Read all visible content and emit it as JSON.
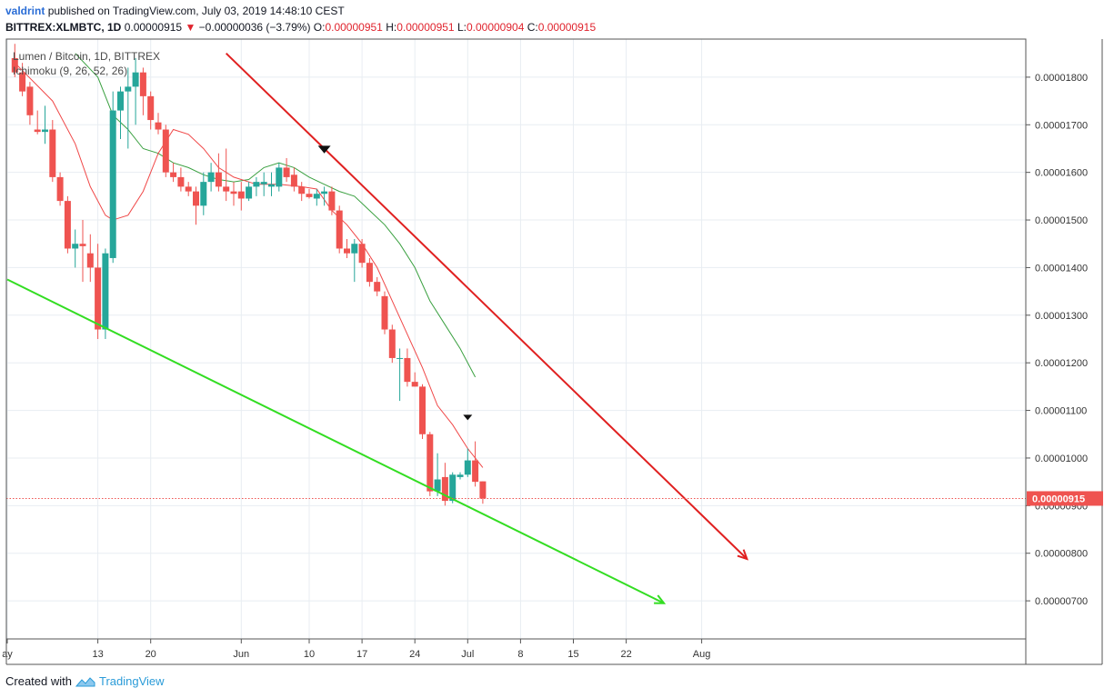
{
  "header": {
    "author": "valdrint",
    "published": "published on TradingView.com, July 03, 2019 14:48:10 CEST"
  },
  "symbol_line": {
    "symbol": "BITTREX:XLMBTC, 1D",
    "last": "0.00000915",
    "arrow": "▼",
    "change": "−0.00000036 (−3.79%)",
    "o_label": "O:",
    "o_value": "0.00000951",
    "h_label": "H:",
    "h_value": "0.00000951",
    "l_label": "L:",
    "l_value": "0.00000904",
    "c_label": "C:",
    "c_value": "0.00000915"
  },
  "legend": {
    "series": "Lumen / Bitcoin, 1D, BITTREX",
    "indicator": "Ichimoku (9, 26, 52, 26)"
  },
  "footer": {
    "created_with": "Created with",
    "brand": "TradingView"
  },
  "colors": {
    "up": "#26a69a",
    "down": "#ef5350",
    "resistance": "#e02020",
    "support": "#33dd22",
    "conversion": "#f04848",
    "base": "#3aa040",
    "grid": "#e8edf2",
    "price_tag": "#ef5350"
  },
  "chart_data": {
    "type": "candlestick",
    "x_ticks": [
      "ay",
      "13",
      "20",
      "Jun",
      "10",
      "17",
      "24",
      "Jul",
      "8",
      "15",
      "22",
      "Aug"
    ],
    "y_ticks": [
      "0.00001800",
      "0.00001700",
      "0.00001600",
      "0.00001500",
      "0.00001400",
      "0.00001300",
      "0.00001200",
      "0.00001100",
      "0.00001000",
      "0.00000900",
      "0.00000800",
      "0.00000700"
    ],
    "ylim": [
      6.2e-06,
      1.88e-05
    ],
    "last_price_label": "0.00000915",
    "last_price": 9.15e-06,
    "start_date": "2019-05-01",
    "x_tick_days": [
      0,
      12,
      19,
      31,
      40,
      47,
      54,
      61,
      68,
      75,
      82,
      92
    ],
    "candles": [
      {
        "date": "2019-05-02",
        "o": 1.84e-05,
        "h": 1.87e-05,
        "l": 1.8e-05,
        "c": 1.81e-05
      },
      {
        "date": "2019-05-03",
        "o": 1.81e-05,
        "h": 1.83e-05,
        "l": 1.76e-05,
        "c": 1.77e-05
      },
      {
        "date": "2019-05-04",
        "o": 1.78e-05,
        "h": 1.79e-05,
        "l": 1.7e-05,
        "c": 1.72e-05
      },
      {
        "date": "2019-05-05",
        "o": 1.69e-05,
        "h": 1.73e-05,
        "l": 1.68e-05,
        "c": 1.685e-05
      },
      {
        "date": "2019-05-06",
        "o": 1.685e-05,
        "h": 1.74e-05,
        "l": 1.66e-05,
        "c": 1.69e-05
      },
      {
        "date": "2019-05-07",
        "o": 1.69e-05,
        "h": 1.71e-05,
        "l": 1.58e-05,
        "c": 1.59e-05
      },
      {
        "date": "2019-05-08",
        "o": 1.59e-05,
        "h": 1.6e-05,
        "l": 1.53e-05,
        "c": 1.54e-05
      },
      {
        "date": "2019-05-09",
        "o": 1.54e-05,
        "h": 1.55e-05,
        "l": 1.43e-05,
        "c": 1.44e-05
      },
      {
        "date": "2019-05-10",
        "o": 1.44e-05,
        "h": 1.48e-05,
        "l": 1.4e-05,
        "c": 1.45e-05
      },
      {
        "date": "2019-05-11",
        "o": 1.45e-05,
        "h": 1.5e-05,
        "l": 1.37e-05,
        "c": 1.445e-05
      },
      {
        "date": "2019-05-12",
        "o": 1.43e-05,
        "h": 1.47e-05,
        "l": 1.37e-05,
        "c": 1.4e-05
      },
      {
        "date": "2019-05-13",
        "o": 1.4e-05,
        "h": 1.45e-05,
        "l": 1.25e-05,
        "c": 1.27e-05
      },
      {
        "date": "2019-05-14",
        "o": 1.27e-05,
        "h": 1.44e-05,
        "l": 1.25e-05,
        "c": 1.43e-05
      },
      {
        "date": "2019-05-15",
        "o": 1.42e-05,
        "h": 1.77e-05,
        "l": 1.41e-05,
        "c": 1.73e-05
      },
      {
        "date": "2019-05-16",
        "o": 1.73e-05,
        "h": 1.78e-05,
        "l": 1.67e-05,
        "c": 1.77e-05
      },
      {
        "date": "2019-05-17",
        "o": 1.77e-05,
        "h": 1.82e-05,
        "l": 1.65e-05,
        "c": 1.78e-05
      },
      {
        "date": "2019-05-18",
        "o": 1.78e-05,
        "h": 1.84e-05,
        "l": 1.7e-05,
        "c": 1.81e-05
      },
      {
        "date": "2019-05-19",
        "o": 1.81e-05,
        "h": 1.82e-05,
        "l": 1.72e-05,
        "c": 1.76e-05
      },
      {
        "date": "2019-05-20",
        "o": 1.76e-05,
        "h": 1.77e-05,
        "l": 1.69e-05,
        "c": 1.71e-05
      },
      {
        "date": "2019-05-21",
        "o": 1.705e-05,
        "h": 1.725e-05,
        "l": 1.68e-05,
        "c": 1.69e-05
      },
      {
        "date": "2019-05-22",
        "o": 1.69e-05,
        "h": 1.7e-05,
        "l": 1.59e-05,
        "c": 1.6e-05
      },
      {
        "date": "2019-05-23",
        "o": 1.6e-05,
        "h": 1.62e-05,
        "l": 1.58e-05,
        "c": 1.59e-05
      },
      {
        "date": "2019-05-24",
        "o": 1.59e-05,
        "h": 1.61e-05,
        "l": 1.56e-05,
        "c": 1.57e-05
      },
      {
        "date": "2019-05-25",
        "o": 1.57e-05,
        "h": 1.58e-05,
        "l": 1.55e-05,
        "c": 1.56e-05
      },
      {
        "date": "2019-05-26",
        "o": 1.56e-05,
        "h": 1.57e-05,
        "l": 1.49e-05,
        "c": 1.53e-05
      },
      {
        "date": "2019-05-27",
        "o": 1.53e-05,
        "h": 1.6e-05,
        "l": 1.51e-05,
        "c": 1.58e-05
      },
      {
        "date": "2019-05-28",
        "o": 1.58e-05,
        "h": 1.62e-05,
        "l": 1.56e-05,
        "c": 1.6e-05
      },
      {
        "date": "2019-05-29",
        "o": 1.6e-05,
        "h": 1.64e-05,
        "l": 1.56e-05,
        "c": 1.57e-05
      },
      {
        "date": "2019-05-30",
        "o": 1.57e-05,
        "h": 1.65e-05,
        "l": 1.54e-05,
        "c": 1.56e-05
      },
      {
        "date": "2019-05-31",
        "o": 1.56e-05,
        "h": 1.58e-05,
        "l": 1.53e-05,
        "c": 1.555e-05
      },
      {
        "date": "2019-06-01",
        "o": 1.56e-05,
        "h": 1.58e-05,
        "l": 1.52e-05,
        "c": 1.545e-05
      },
      {
        "date": "2019-06-02",
        "o": 1.545e-05,
        "h": 1.58e-05,
        "l": 1.54e-05,
        "c": 1.57e-05
      },
      {
        "date": "2019-06-03",
        "o": 1.57e-05,
        "h": 1.59e-05,
        "l": 1.55e-05,
        "c": 1.58e-05
      },
      {
        "date": "2019-06-04",
        "o": 1.575e-05,
        "h": 1.6e-05,
        "l": 1.55e-05,
        "c": 1.58e-05
      },
      {
        "date": "2019-06-05",
        "o": 1.57e-05,
        "h": 1.6e-05,
        "l": 1.55e-05,
        "c": 1.575e-05
      },
      {
        "date": "2019-06-06",
        "o": 1.57e-05,
        "h": 1.62e-05,
        "l": 1.56e-05,
        "c": 1.61e-05
      },
      {
        "date": "2019-06-07",
        "o": 1.61e-05,
        "h": 1.63e-05,
        "l": 1.58e-05,
        "c": 1.59e-05
      },
      {
        "date": "2019-06-08",
        "o": 1.595e-05,
        "h": 1.61e-05,
        "l": 1.56e-05,
        "c": 1.57e-05
      },
      {
        "date": "2019-06-09",
        "o": 1.57e-05,
        "h": 1.58e-05,
        "l": 1.54e-05,
        "c": 1.555e-05
      },
      {
        "date": "2019-06-10",
        "o": 1.555e-05,
        "h": 1.565e-05,
        "l": 1.545e-05,
        "c": 1.548e-05
      },
      {
        "date": "2019-06-11",
        "o": 1.545e-05,
        "h": 1.565e-05,
        "l": 1.53e-05,
        "c": 1.555e-05
      },
      {
        "date": "2019-06-12",
        "o": 1.555e-05,
        "h": 1.57e-05,
        "l": 1.53e-05,
        "c": 1.56e-05
      },
      {
        "date": "2019-06-13",
        "o": 1.56e-05,
        "h": 1.57e-05,
        "l": 1.51e-05,
        "c": 1.52e-05
      },
      {
        "date": "2019-06-14",
        "o": 1.52e-05,
        "h": 1.53e-05,
        "l": 1.43e-05,
        "c": 1.44e-05
      },
      {
        "date": "2019-06-15",
        "o": 1.44e-05,
        "h": 1.46e-05,
        "l": 1.42e-05,
        "c": 1.43e-05
      },
      {
        "date": "2019-06-16",
        "o": 1.43e-05,
        "h": 1.46e-05,
        "l": 1.37e-05,
        "c": 1.45e-05
      },
      {
        "date": "2019-06-17",
        "o": 1.45e-05,
        "h": 1.46e-05,
        "l": 1.4e-05,
        "c": 1.41e-05
      },
      {
        "date": "2019-06-18",
        "o": 1.41e-05,
        "h": 1.42e-05,
        "l": 1.36e-05,
        "c": 1.37e-05
      },
      {
        "date": "2019-06-19",
        "o": 1.37e-05,
        "h": 1.38e-05,
        "l": 1.34e-05,
        "c": 1.35e-05
      },
      {
        "date": "2019-06-20",
        "o": 1.34e-05,
        "h": 1.35e-05,
        "l": 1.26e-05,
        "c": 1.27e-05
      },
      {
        "date": "2019-06-21",
        "o": 1.27e-05,
        "h": 1.28e-05,
        "l": 1.2e-05,
        "c": 1.21e-05
      },
      {
        "date": "2019-06-22",
        "o": 1.21e-05,
        "h": 1.23e-05,
        "l": 1.12e-05,
        "c": 1.21e-05
      },
      {
        "date": "2019-06-23",
        "o": 1.21e-05,
        "h": 1.23e-05,
        "l": 1.15e-05,
        "c": 1.16e-05
      },
      {
        "date": "2019-06-24",
        "o": 1.16e-05,
        "h": 1.18e-05,
        "l": 1.15e-05,
        "c": 1.15e-05
      },
      {
        "date": "2019-06-25",
        "o": 1.15e-05,
        "h": 1.155e-05,
        "l": 1.04e-05,
        "c": 1.05e-05
      },
      {
        "date": "2019-06-26",
        "o": 1.05e-05,
        "h": 1.055e-05,
        "l": 9.2e-06,
        "c": 9.3e-06
      },
      {
        "date": "2019-06-27",
        "o": 9.3e-06,
        "h": 1.01e-05,
        "l": 9.2e-06,
        "c": 9.55e-06
      },
      {
        "date": "2019-06-28",
        "o": 9.6e-06,
        "h": 9.9e-06,
        "l": 9e-06,
        "c": 9.1e-06
      },
      {
        "date": "2019-06-29",
        "o": 9.1e-06,
        "h": 9.7e-06,
        "l": 9.05e-06,
        "c": 9.65e-06
      },
      {
        "date": "2019-06-30",
        "o": 9.6e-06,
        "h": 9.7e-06,
        "l": 9.55e-06,
        "c": 9.65e-06
      },
      {
        "date": "2019-07-01",
        "o": 9.65e-06,
        "h": 1.02e-05,
        "l": 9.6e-06,
        "c": 9.95e-06
      },
      {
        "date": "2019-07-02",
        "o": 9.95e-06,
        "h": 1.035e-05,
        "l": 9.4e-06,
        "c": 9.5e-06
      },
      {
        "date": "2019-07-03",
        "o": 9.51e-06,
        "h": 9.51e-06,
        "l": 9.04e-06,
        "c": 9.15e-06
      }
    ],
    "conversion_line": [
      [
        1,
        1.83e-05
      ],
      [
        6,
        1.75e-05
      ],
      [
        9,
        1.66e-05
      ],
      [
        11,
        1.57e-05
      ],
      [
        13,
        1.51e-05
      ],
      [
        14,
        1.5e-05
      ],
      [
        16,
        1.51e-05
      ],
      [
        18,
        1.56e-05
      ],
      [
        20,
        1.64e-05
      ],
      [
        22,
        1.69e-05
      ],
      [
        24,
        1.68e-05
      ],
      [
        26,
        1.65e-05
      ],
      [
        28,
        1.61e-05
      ],
      [
        30,
        1.59e-05
      ],
      [
        33,
        1.575e-05
      ],
      [
        36,
        1.575e-05
      ],
      [
        39,
        1.57e-05
      ],
      [
        41,
        1.565e-05
      ],
      [
        43,
        1.52e-05
      ],
      [
        45,
        1.49e-05
      ],
      [
        47,
        1.45e-05
      ],
      [
        49,
        1.4e-05
      ],
      [
        51,
        1.33e-05
      ],
      [
        53,
        1.26e-05
      ],
      [
        55,
        1.19e-05
      ],
      [
        57,
        1.11e-05
      ],
      [
        59,
        1.07e-05
      ],
      [
        61,
        1.02e-05
      ],
      [
        63,
        9.8e-06
      ]
    ],
    "base_line": [
      [
        9,
        1.85e-05
      ],
      [
        12,
        1.8e-05
      ],
      [
        14,
        1.72e-05
      ],
      [
        16,
        1.69e-05
      ],
      [
        18,
        1.65e-05
      ],
      [
        20,
        1.64e-05
      ],
      [
        22,
        1.62e-05
      ],
      [
        24,
        1.61e-05
      ],
      [
        26,
        1.595e-05
      ],
      [
        28,
        1.585e-05
      ],
      [
        30,
        1.58e-05
      ],
      [
        32,
        1.585e-05
      ],
      [
        34,
        1.61e-05
      ],
      [
        36,
        1.62e-05
      ],
      [
        38,
        1.61e-05
      ],
      [
        40,
        1.59e-05
      ],
      [
        42,
        1.575e-05
      ],
      [
        44,
        1.56e-05
      ],
      [
        46,
        1.55e-05
      ],
      [
        48,
        1.52e-05
      ],
      [
        50,
        1.49e-05
      ],
      [
        52,
        1.45e-05
      ],
      [
        54,
        1.4e-05
      ],
      [
        56,
        1.33e-05
      ],
      [
        58,
        1.28e-05
      ],
      [
        60,
        1.23e-05
      ],
      [
        62,
        1.17e-05
      ]
    ],
    "resistance_line": {
      "from": [
        29,
        1.85e-05
      ],
      "to": [
        98,
        7.88e-06
      ]
    },
    "support_line": {
      "from": [
        0,
        1.375e-05
      ],
      "to": [
        87,
        6.95e-06
      ]
    },
    "markers": [
      {
        "day": 42,
        "price": 1.648e-05
      },
      {
        "day": 61,
        "price": 1.085e-05
      }
    ]
  }
}
